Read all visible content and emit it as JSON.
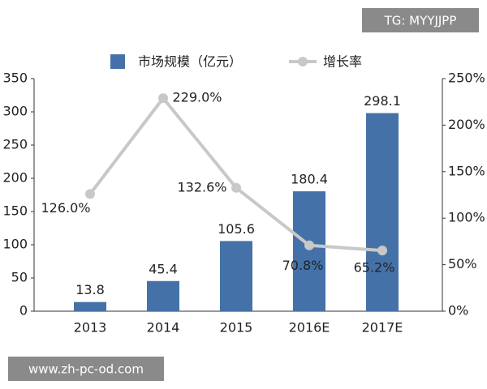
{
  "chart_data": {
    "type": "bar",
    "categories": [
      "2013",
      "2014",
      "2015",
      "2016E",
      "2017E"
    ],
    "series": [
      {
        "name": "市场规模（亿元）",
        "color": "#4472a8",
        "type": "bar",
        "values": [
          13.8,
          45.4,
          105.6,
          180.4,
          298.1
        ]
      },
      {
        "name": "增长率",
        "color": "#c8c8c8",
        "type": "line",
        "axis": "y2",
        "values": [
          126.0,
          229.0,
          132.6,
          70.8,
          65.2
        ],
        "value_labels": [
          "126.0%",
          "229.0%",
          "132.6%",
          "70.8%",
          "65.2%"
        ]
      }
    ],
    "ylim": [
      0,
      350
    ],
    "yticks": [
      0,
      50,
      100,
      150,
      200,
      250,
      300,
      350
    ],
    "y2lim": [
      0,
      250
    ],
    "y2ticks": [
      {
        "value": 0,
        "label": "0%"
      },
      {
        "value": 50,
        "label": "50%"
      },
      {
        "value": 100,
        "label": "100%"
      },
      {
        "value": 150,
        "label": "150%"
      },
      {
        "value": 200,
        "label": "200%"
      },
      {
        "value": 250,
        "label": "250%"
      }
    ],
    "legend": "top",
    "annotations": [
      "TG: MYYJJPP",
      "www.zh-pc-od.com"
    ]
  }
}
